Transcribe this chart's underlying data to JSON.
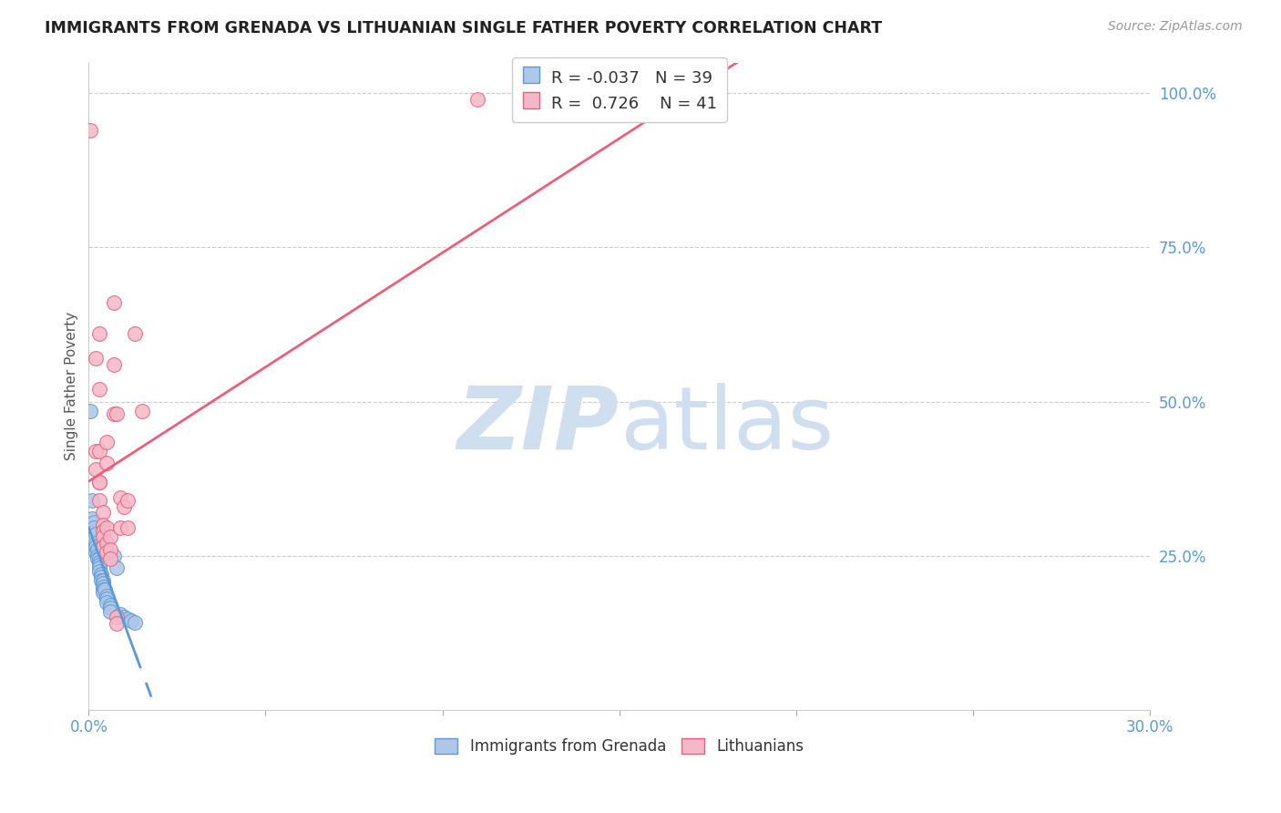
{
  "title": "IMMIGRANTS FROM GRENADA VS LITHUANIAN SINGLE FATHER POVERTY CORRELATION CHART",
  "source": "Source: ZipAtlas.com",
  "ylabel": "Single Father Poverty",
  "right_yticklabels": [
    "",
    "25.0%",
    "50.0%",
    "75.0%",
    "100.0%"
  ],
  "right_ytick_vals": [
    0.0,
    0.25,
    0.5,
    0.75,
    1.0
  ],
  "legend_grenada_R": "-0.037",
  "legend_grenada_N": "39",
  "legend_lithuanian_R": "0.726",
  "legend_lithuanian_N": "41",
  "legend_label_grenada": "Immigrants from Grenada",
  "legend_label_lithuanian": "Lithuanians",
  "blue_fill": "#aec6e8",
  "blue_edge": "#5b9bd5",
  "pink_fill": "#f5b8c8",
  "pink_edge": "#e8607a",
  "blue_line": "#5b9bd5",
  "pink_line": "#e8607a",
  "watermark_color": "#d0dff0",
  "xmin": 0.0,
  "xmax": 0.3,
  "ymin": 0.0,
  "ymax": 1.05,
  "grenada_points": [
    [
      0.0005,
      0.485
    ],
    [
      0.001,
      0.34
    ],
    [
      0.001,
      0.31
    ],
    [
      0.0015,
      0.305
    ],
    [
      0.0015,
      0.295
    ],
    [
      0.002,
      0.285
    ],
    [
      0.002,
      0.27
    ],
    [
      0.002,
      0.265
    ],
    [
      0.002,
      0.255
    ],
    [
      0.0025,
      0.26
    ],
    [
      0.0025,
      0.25
    ],
    [
      0.0025,
      0.245
    ],
    [
      0.003,
      0.245
    ],
    [
      0.003,
      0.24
    ],
    [
      0.003,
      0.235
    ],
    [
      0.003,
      0.23
    ],
    [
      0.003,
      0.225
    ],
    [
      0.0035,
      0.22
    ],
    [
      0.0035,
      0.215
    ],
    [
      0.0035,
      0.21
    ],
    [
      0.004,
      0.21
    ],
    [
      0.004,
      0.205
    ],
    [
      0.004,
      0.2
    ],
    [
      0.004,
      0.195
    ],
    [
      0.004,
      0.19
    ],
    [
      0.0045,
      0.195
    ],
    [
      0.005,
      0.185
    ],
    [
      0.005,
      0.18
    ],
    [
      0.005,
      0.175
    ],
    [
      0.006,
      0.17
    ],
    [
      0.006,
      0.165
    ],
    [
      0.006,
      0.16
    ],
    [
      0.007,
      0.25
    ],
    [
      0.008,
      0.23
    ],
    [
      0.009,
      0.155
    ],
    [
      0.01,
      0.15
    ],
    [
      0.011,
      0.148
    ],
    [
      0.012,
      0.145
    ],
    [
      0.013,
      0.142
    ]
  ],
  "lithuanian_points": [
    [
      0.0005,
      0.94
    ],
    [
      0.002,
      0.57
    ],
    [
      0.002,
      0.42
    ],
    [
      0.002,
      0.39
    ],
    [
      0.003,
      0.61
    ],
    [
      0.003,
      0.42
    ],
    [
      0.003,
      0.37
    ],
    [
      0.003,
      0.52
    ],
    [
      0.003,
      0.37
    ],
    [
      0.003,
      0.34
    ],
    [
      0.004,
      0.32
    ],
    [
      0.004,
      0.3
    ],
    [
      0.004,
      0.29
    ],
    [
      0.004,
      0.28
    ],
    [
      0.004,
      0.265
    ],
    [
      0.005,
      0.435
    ],
    [
      0.005,
      0.4
    ],
    [
      0.005,
      0.295
    ],
    [
      0.005,
      0.27
    ],
    [
      0.005,
      0.255
    ],
    [
      0.006,
      0.28
    ],
    [
      0.006,
      0.26
    ],
    [
      0.006,
      0.245
    ],
    [
      0.007,
      0.66
    ],
    [
      0.007,
      0.56
    ],
    [
      0.007,
      0.48
    ],
    [
      0.008,
      0.48
    ],
    [
      0.008,
      0.15
    ],
    [
      0.008,
      0.14
    ],
    [
      0.009,
      0.345
    ],
    [
      0.009,
      0.295
    ],
    [
      0.01,
      0.33
    ],
    [
      0.011,
      0.34
    ],
    [
      0.011,
      0.295
    ],
    [
      0.013,
      0.61
    ],
    [
      0.015,
      0.485
    ],
    [
      0.11,
      0.99
    ],
    [
      0.155,
      0.985
    ],
    [
      0.17,
      0.975
    ],
    [
      0.175,
      0.97
    ],
    [
      0.178,
      0.965
    ]
  ]
}
